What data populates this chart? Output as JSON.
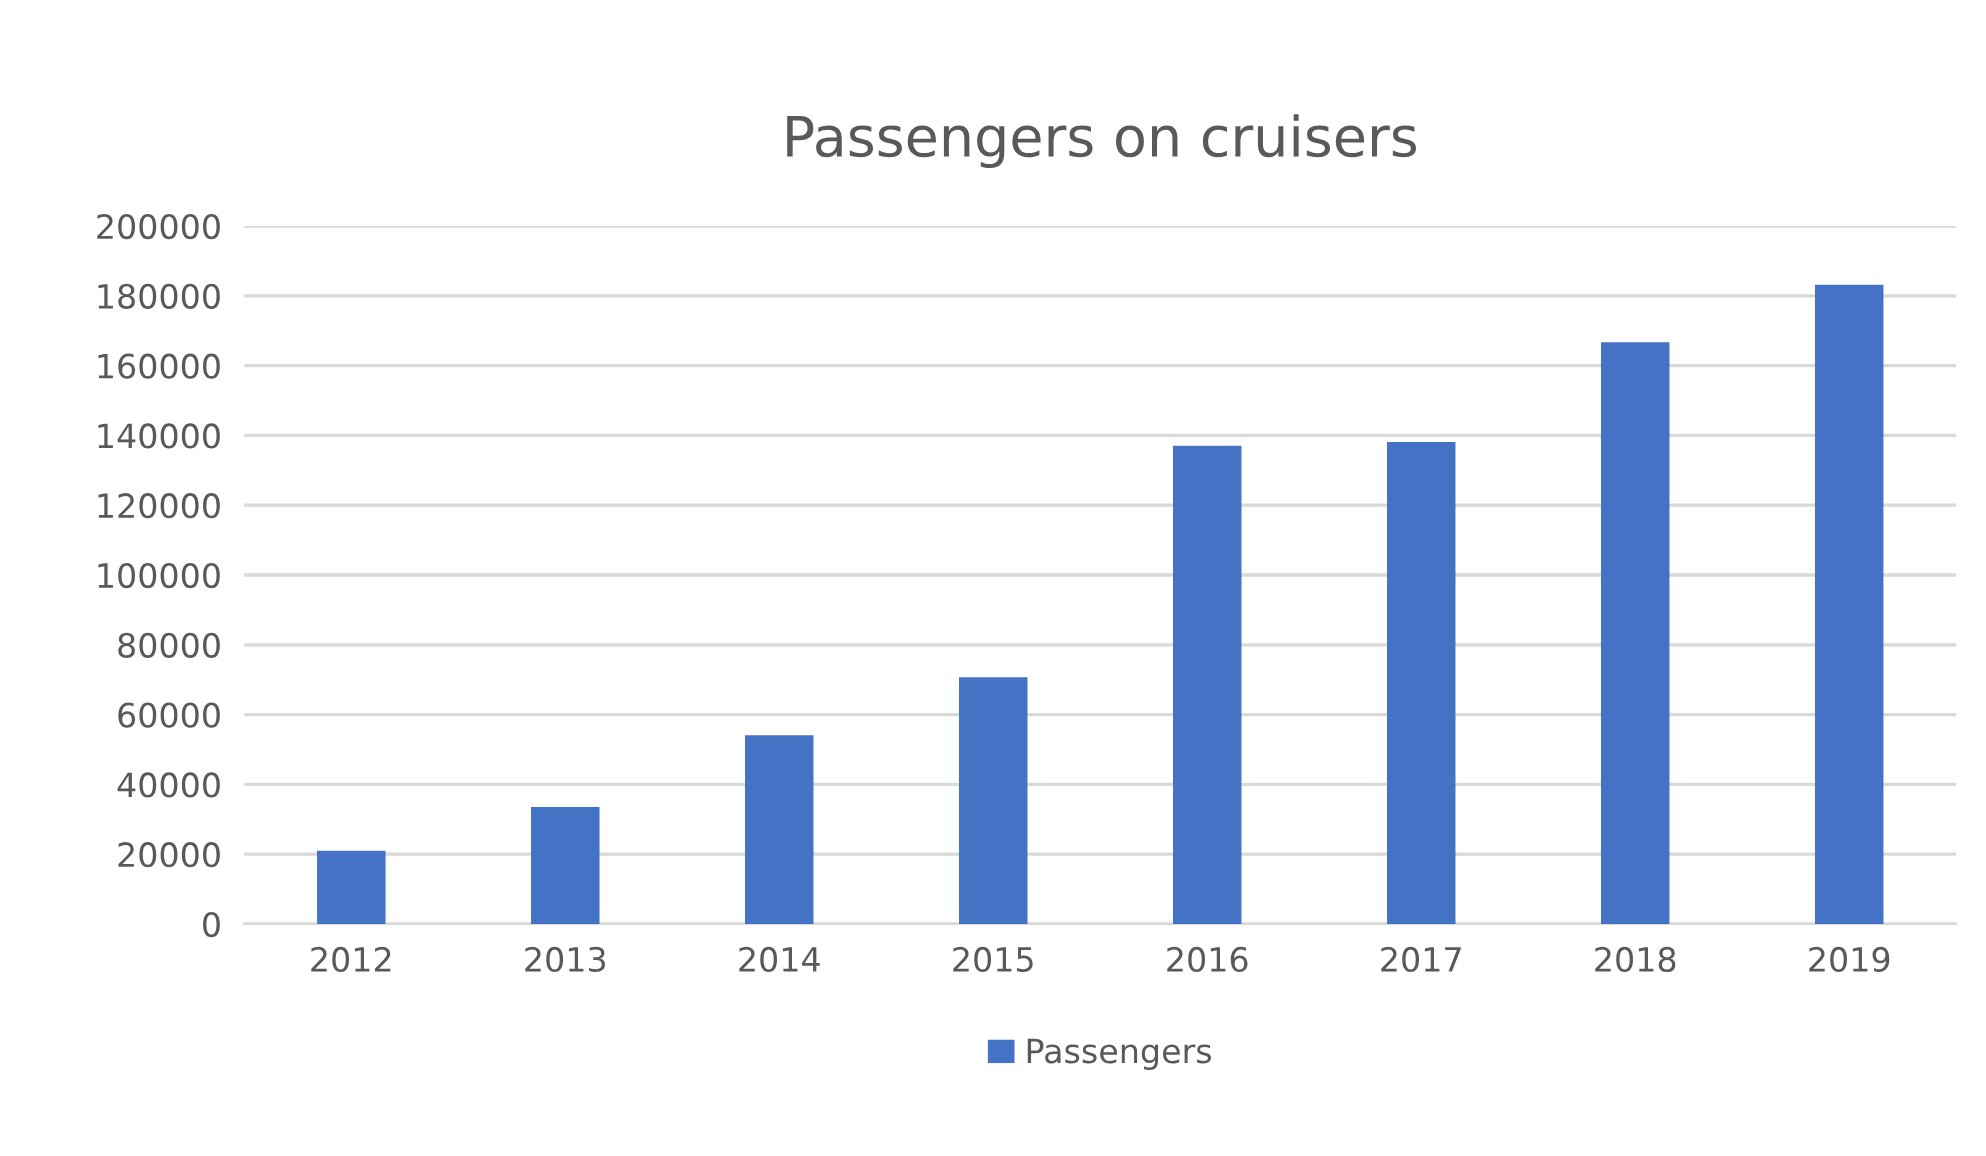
{
  "chart_data": {
    "type": "bar",
    "title": "Passengers on cruisers",
    "categories": [
      "2012",
      "2013",
      "2014",
      "2015",
      "2016",
      "2017",
      "2018",
      "2019"
    ],
    "series": [
      {
        "name": "Passengers",
        "color": "#4472c4",
        "values": [
          21000,
          33500,
          54100,
          70700,
          137000,
          138100,
          166700,
          183200
        ]
      }
    ],
    "ylim": [
      0,
      200000
    ],
    "yticks": [
      0,
      20000,
      40000,
      60000,
      80000,
      100000,
      120000,
      140000,
      160000,
      180000,
      200000
    ],
    "grid": "y",
    "legend": "bottom"
  }
}
